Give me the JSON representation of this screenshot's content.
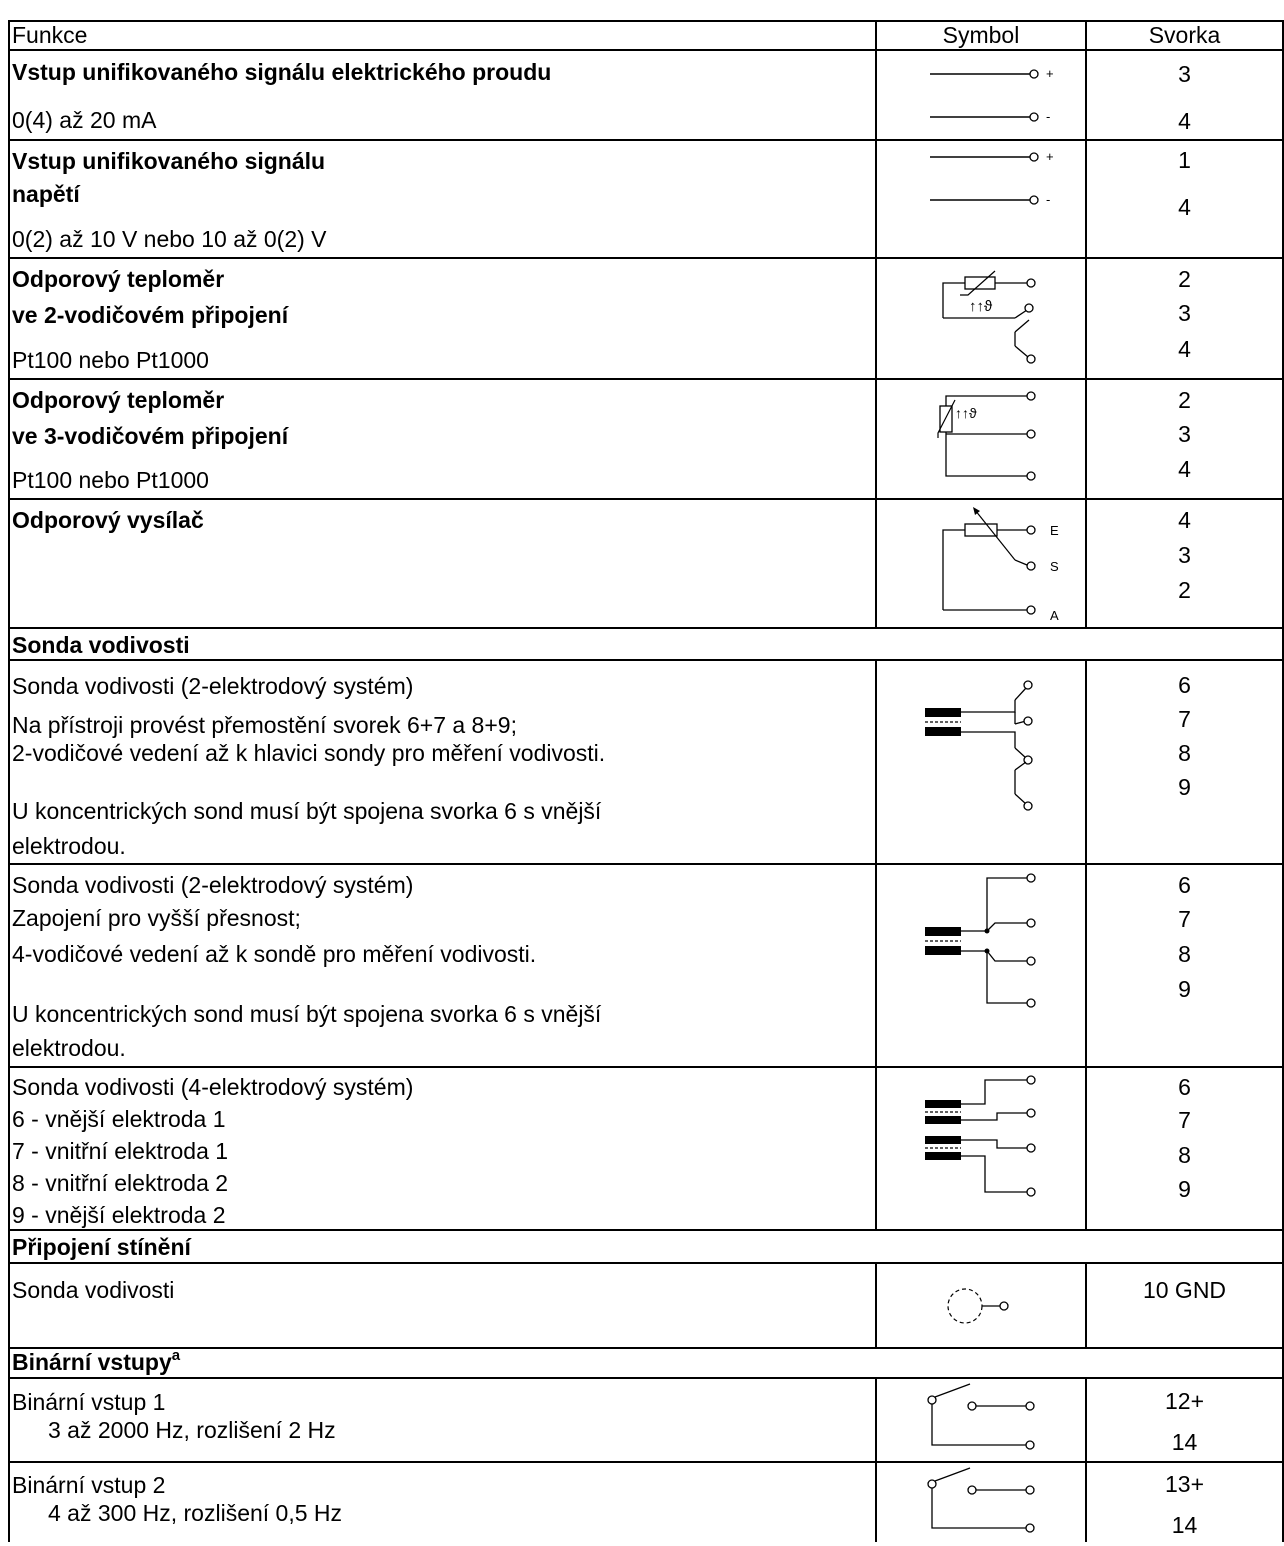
{
  "header": {
    "function": "Funkce",
    "symbol": "Symbol",
    "terminal": "Svorka"
  },
  "current_input": {
    "title": "Vstup unifikovaného signálu elektrického proudu",
    "range": "0(4) až 20 mA",
    "sign_plus": "+",
    "sign_minus": "-",
    "terminals": [
      "3",
      "4"
    ]
  },
  "voltage_input": {
    "title_line1": "Vstup unifikovaného signálu",
    "title_line2": "napětí",
    "range": "0(2) až 10 V nebo 10 až 0(2) V",
    "sign_plus": "+",
    "sign_minus": "-",
    "terminals": [
      "1",
      "4"
    ]
  },
  "rtd_2wire": {
    "title_line1": "Odporový teploměr",
    "title_line2": "ve 2-vodičovém připojení",
    "type": "Pt100 nebo Pt1000",
    "terminals": [
      "2",
      "3",
      "4"
    ]
  },
  "rtd_3wire": {
    "title_line1": "Odporový teploměr",
    "title_line2": "ve 3-vodičovém připojení",
    "type": "Pt100 nebo Pt1000",
    "terminals": [
      "2",
      "3",
      "4"
    ]
  },
  "resistance_transmitter": {
    "title": "Odporový vysílač",
    "pin_labels": [
      "E",
      "S",
      "A"
    ],
    "terminals": [
      "4",
      "3",
      "2"
    ]
  },
  "conductivity_section": {
    "title": "Sonda vodivosti"
  },
  "cond_2el_a": {
    "title": "Sonda vodivosti (2-elektrodový systém)",
    "line1": "Na přístroji provést přemostění svorek 6+7 a 8+9;",
    "line2": "2-vodičové vedení až k hlavici sondy pro měření vodivosti.",
    "line3": "U koncentrických sond musí být spojena svorka 6 s vnější",
    "line4": "elektrodou.",
    "terminals": [
      "6",
      "7",
      "8",
      "9"
    ]
  },
  "cond_2el_b": {
    "title": "Sonda vodivosti (2-elektrodový systém)",
    "line1": "Zapojení pro vyšší přesnost;",
    "line2": "4-vodičové vedení až k sondě pro měření vodivosti.",
    "line3": "U koncentrických sond musí být spojena svorka 6 s vnější",
    "line4": "elektrodou.",
    "terminals": [
      "6",
      "7",
      "8",
      "9"
    ]
  },
  "cond_4el": {
    "title": "Sonda vodivosti (4-elektrodový systém)",
    "items": [
      "6 - vnější elektroda 1",
      "7 - vnitřní elektroda 1",
      "8 - vnitřní elektroda 2",
      "9 - vnější elektroda 2"
    ],
    "terminals": [
      "6",
      "7",
      "8",
      "9"
    ]
  },
  "shield_section": {
    "title": "Připojení stínění"
  },
  "shield": {
    "label": "Sonda vodivosti",
    "terminal": "10 GND"
  },
  "binary_section": {
    "title": "Binární vstupy",
    "footnote_mark": "a"
  },
  "binary1": {
    "title": "Binární vstup 1",
    "detail": "3 až 2000 Hz, rozlišení 2 Hz",
    "terminals": [
      "12+",
      "14"
    ]
  },
  "binary2": {
    "title": "Binární vstup 2",
    "detail": "4 až 300 Hz, rozlišení 0,5 Hz",
    "terminals": [
      "13+",
      "14"
    ]
  }
}
